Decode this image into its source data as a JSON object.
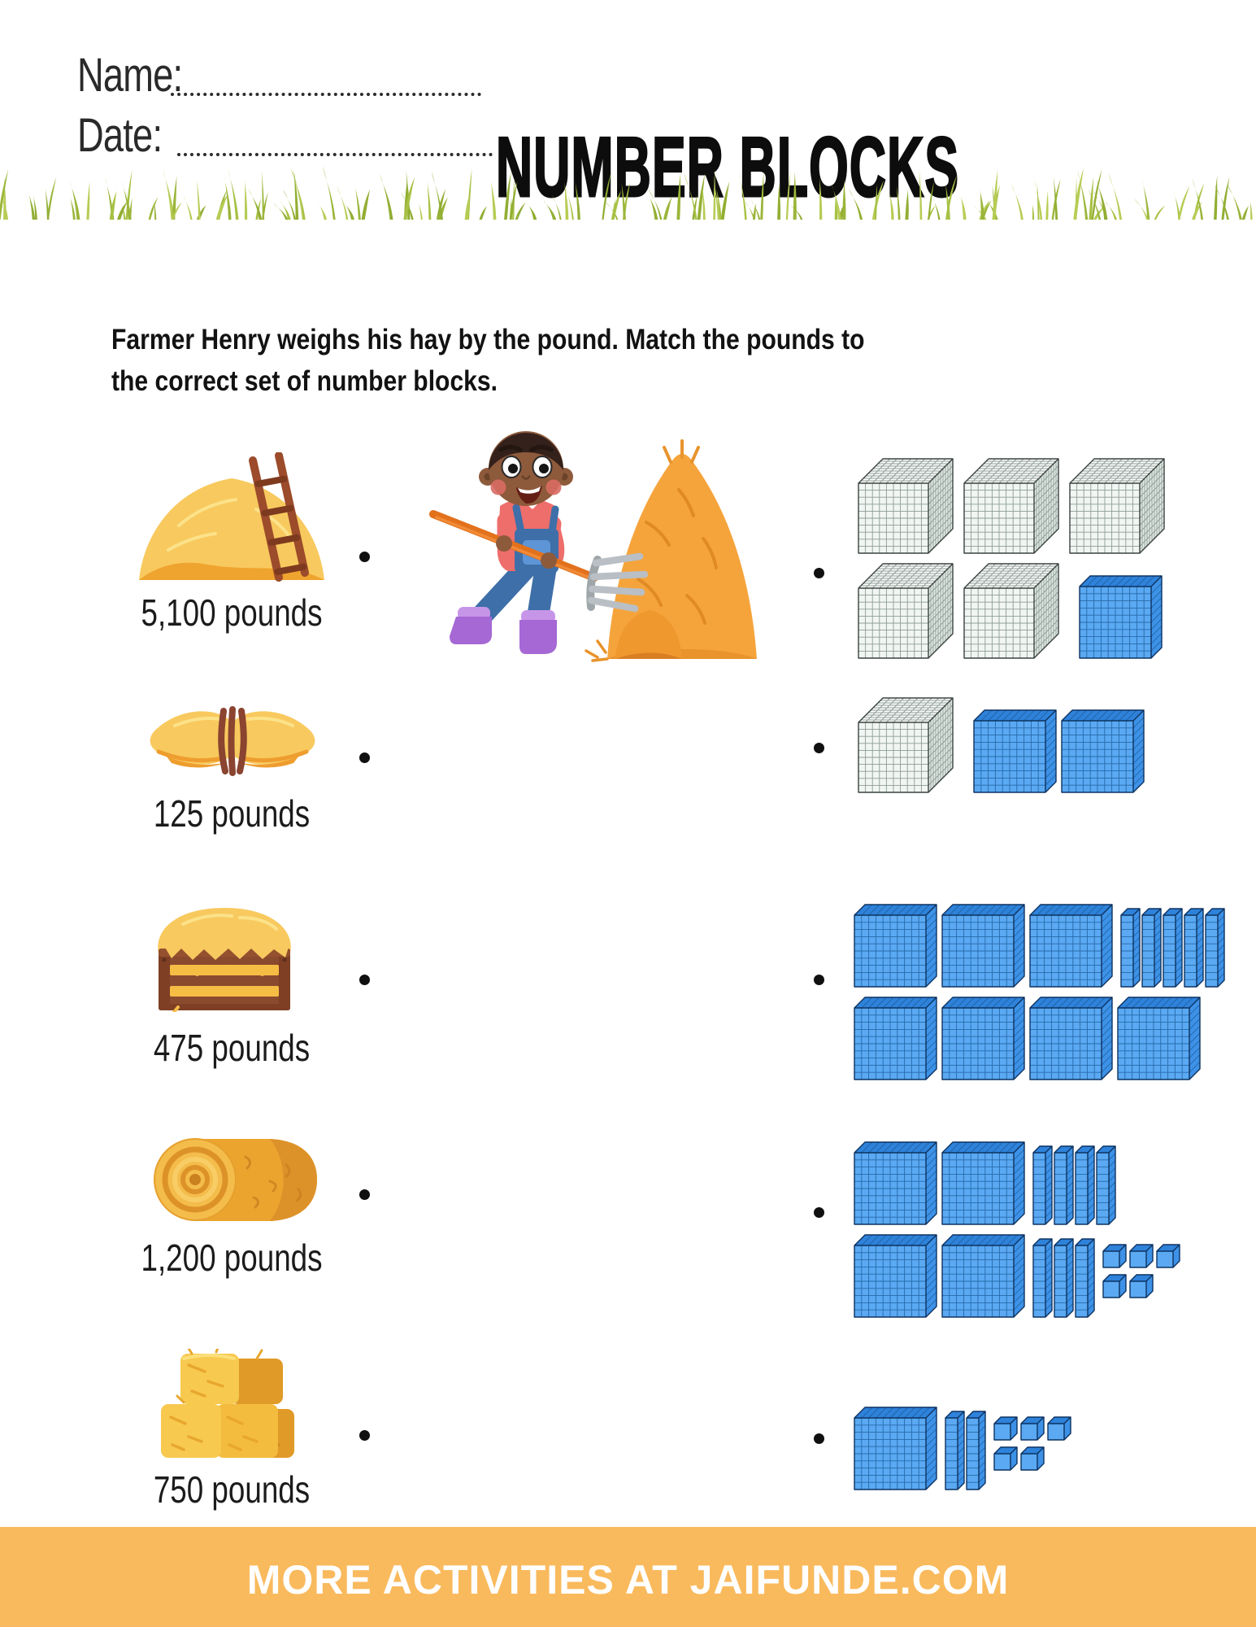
{
  "header": {
    "name_label": "Name:",
    "date_label": "Date:",
    "title": "NUMBER BLOCKS"
  },
  "instructions": {
    "lines": [
      "Farmer Henry weighs his hay by the pound. Match the pounds to",
      "the correct set of number blocks."
    ]
  },
  "activity": {
    "center_illustration": "farmer-boy-pitchfork-hay-icon",
    "hay_items": [
      {
        "label": "5,100 pounds",
        "icon": "haystack-ladder-icon"
      },
      {
        "label": "125 pounds",
        "icon": "hay-bundle-icon"
      },
      {
        "label": "475 pounds",
        "icon": "hay-crate-icon"
      },
      {
        "label": "1,200 pounds",
        "icon": "hay-roll-icon"
      },
      {
        "label": "750 pounds",
        "icon": "hay-bale-stack-icon"
      }
    ],
    "block_sets": [
      {
        "represents": 5100,
        "rows": [
          {
            "thousands": 3
          },
          {
            "thousands": 2,
            "hundreds": 1
          }
        ]
      },
      {
        "represents": 1200,
        "rows": [
          {
            "thousands": 1,
            "hundreds": 2
          }
        ]
      },
      {
        "represents": 750,
        "rows": [
          {
            "hundreds": 3,
            "tens": 5
          },
          {
            "hundreds": 4
          }
        ]
      },
      {
        "represents": 475,
        "rows": [
          {
            "hundreds": 2,
            "tens": 4
          },
          {
            "hundreds": 2,
            "tens": 3,
            "ones": 5
          }
        ]
      },
      {
        "represents": 125,
        "rows": [
          {
            "hundreds": 1,
            "tens": 2,
            "ones": 5
          }
        ]
      }
    ]
  },
  "footer": {
    "text": "MORE ACTIVITIES AT JAIFUNDE.COM"
  },
  "colors": {
    "footer_bg": "#F9BA5D",
    "block_blue_front": "#5AA9F2",
    "block_blue_top": "#2E82DA",
    "block_white_front": "#F1F6F3",
    "grass_green": "#A8C144",
    "hay_yellow": "#F8C95E",
    "hay_orange": "#EFA42F",
    "title_black": "#0D0D0D"
  }
}
